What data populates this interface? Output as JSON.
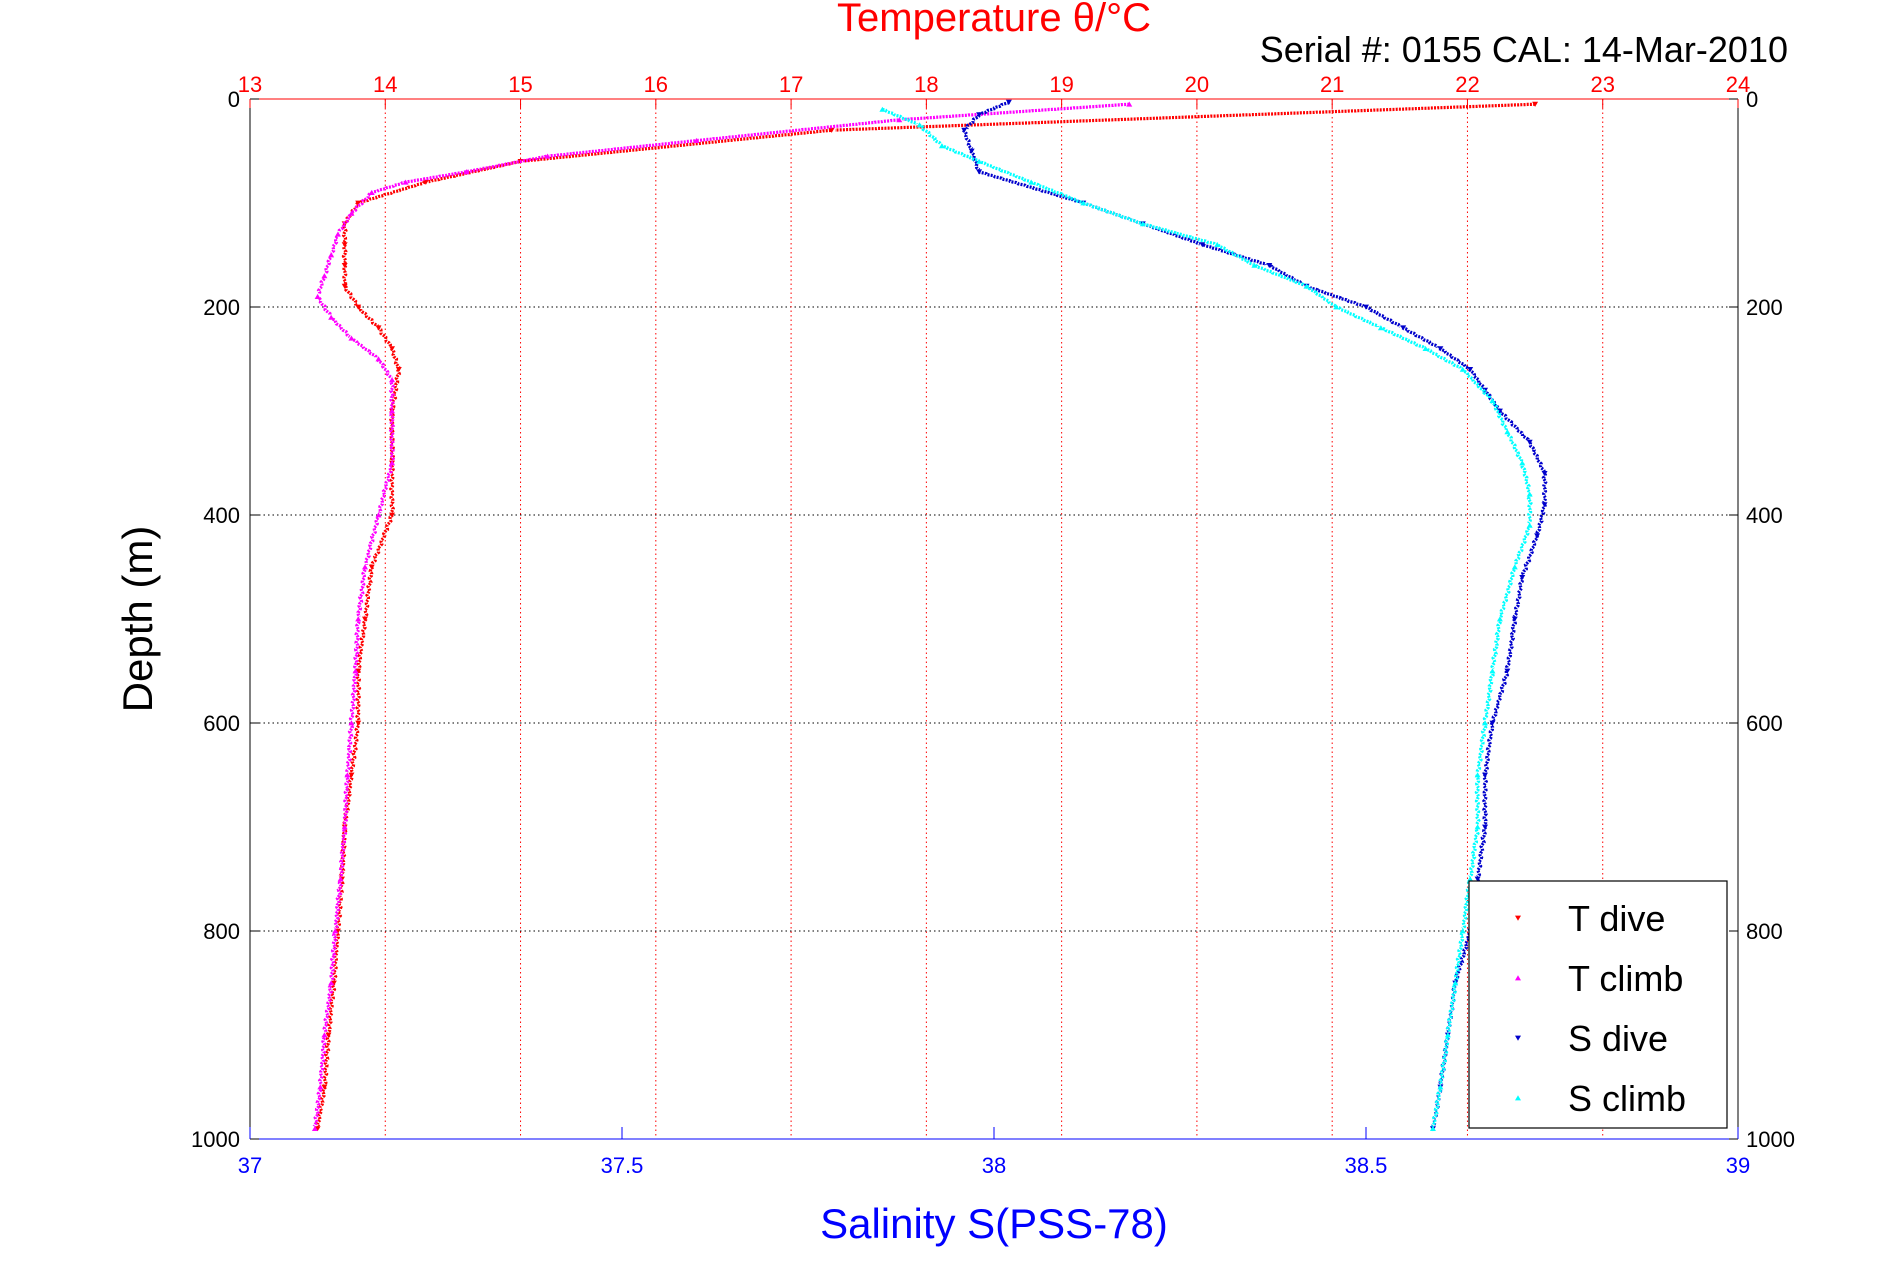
{
  "chart_data": {
    "type": "scatter",
    "title": "Temperature θ/°C",
    "subtitle": "Serial #: 0155  CAL: 14-Mar-2010",
    "ylabel": "Depth (m)",
    "xlabel_bottom": "Salinity S(PSS-78)",
    "xlabel_top": "Temperature θ/°C",
    "ylim": [
      0,
      1000
    ],
    "y_reversed": true,
    "salinity_xlim": [
      37,
      39
    ],
    "temperature_xlim": [
      13,
      24
    ],
    "y_ticks": [
      "0",
      "200",
      "400",
      "600",
      "800",
      "1000"
    ],
    "y_tick_values": [
      0,
      200,
      400,
      600,
      800,
      1000
    ],
    "salinity_ticks": [
      "37",
      "37.5",
      "38",
      "38.5",
      "39"
    ],
    "salinity_tick_values": [
      37,
      37.5,
      38,
      38.5,
      39
    ],
    "temperature_ticks": [
      "13",
      "14",
      "15",
      "16",
      "17",
      "18",
      "19",
      "20",
      "21",
      "22",
      "23",
      "24"
    ],
    "temperature_tick_values": [
      13,
      14,
      15,
      16,
      17,
      18,
      19,
      20,
      21,
      22,
      23,
      24
    ],
    "grid": true,
    "legend_position": "bottom-right",
    "colors": {
      "temperature_axis": "#ff0000",
      "salinity_axis": "#0000ff",
      "t_dive": "#ff0000",
      "t_climb": "#ff00ff",
      "s_dive": "#0000cc",
      "s_climb": "#00ffff"
    },
    "series": [
      {
        "name": "T dive",
        "axis": "temperature",
        "marker": "triangle-down",
        "depth": [
          5,
          30,
          60,
          80,
          100,
          120,
          140,
          160,
          180,
          200,
          220,
          240,
          260,
          300,
          350,
          400,
          450,
          500,
          550,
          600,
          650,
          700,
          750,
          800,
          850,
          900,
          950,
          990
        ],
        "values": [
          22.5,
          17.3,
          15.0,
          14.3,
          13.8,
          13.7,
          13.7,
          13.7,
          13.7,
          13.8,
          13.95,
          14.05,
          14.1,
          14.05,
          14.05,
          14.05,
          13.9,
          13.85,
          13.8,
          13.8,
          13.75,
          13.7,
          13.68,
          13.65,
          13.62,
          13.58,
          13.55,
          13.5
        ]
      },
      {
        "name": "T climb",
        "axis": "temperature",
        "marker": "triangle-up",
        "depth": [
          5,
          20,
          40,
          55,
          70,
          80,
          90,
          110,
          130,
          150,
          170,
          190,
          210,
          230,
          250,
          270,
          300,
          350,
          400,
          450,
          500,
          550,
          600,
          650,
          700,
          750,
          800,
          850,
          900,
          950,
          990
        ],
        "values": [
          19.5,
          17.8,
          16.3,
          15.2,
          14.6,
          14.15,
          13.9,
          13.75,
          13.65,
          13.6,
          13.55,
          13.5,
          13.6,
          13.75,
          13.95,
          14.05,
          14.05,
          14.05,
          13.95,
          13.85,
          13.8,
          13.78,
          13.75,
          13.72,
          13.7,
          13.67,
          13.63,
          13.6,
          13.55,
          13.52,
          13.48
        ]
      },
      {
        "name": "S dive",
        "axis": "salinity",
        "marker": "triangle-down",
        "depth": [
          3,
          15,
          30,
          50,
          70,
          100,
          120,
          140,
          160,
          180,
          200,
          220,
          240,
          260,
          280,
          300,
          330,
          360,
          390,
          420,
          460,
          500,
          550,
          600,
          650,
          700,
          750,
          800,
          850,
          900,
          950,
          990
        ],
        "values": [
          38.02,
          37.98,
          37.96,
          37.97,
          37.98,
          38.12,
          38.2,
          38.28,
          38.37,
          38.42,
          38.5,
          38.55,
          38.6,
          38.64,
          38.66,
          38.68,
          38.72,
          38.74,
          38.74,
          38.73,
          38.71,
          38.7,
          38.69,
          38.67,
          38.66,
          38.66,
          38.65,
          38.64,
          38.62,
          38.61,
          38.6,
          38.59
        ]
      },
      {
        "name": "S climb",
        "axis": "salinity",
        "marker": "triangle-up",
        "depth": [
          10,
          25,
          45,
          60,
          80,
          100,
          120,
          140,
          160,
          180,
          200,
          220,
          240,
          260,
          290,
          320,
          350,
          380,
          410,
          450,
          500,
          550,
          600,
          650,
          700,
          750,
          800,
          850,
          900,
          950,
          990
        ],
        "values": [
          37.85,
          37.9,
          37.93,
          37.98,
          38.05,
          38.12,
          38.2,
          38.3,
          38.35,
          38.42,
          38.46,
          38.52,
          38.58,
          38.63,
          38.67,
          38.69,
          38.71,
          38.72,
          38.72,
          38.7,
          38.68,
          38.67,
          38.66,
          38.65,
          38.65,
          38.64,
          38.63,
          38.62,
          38.61,
          38.6,
          38.59
        ]
      }
    ]
  }
}
